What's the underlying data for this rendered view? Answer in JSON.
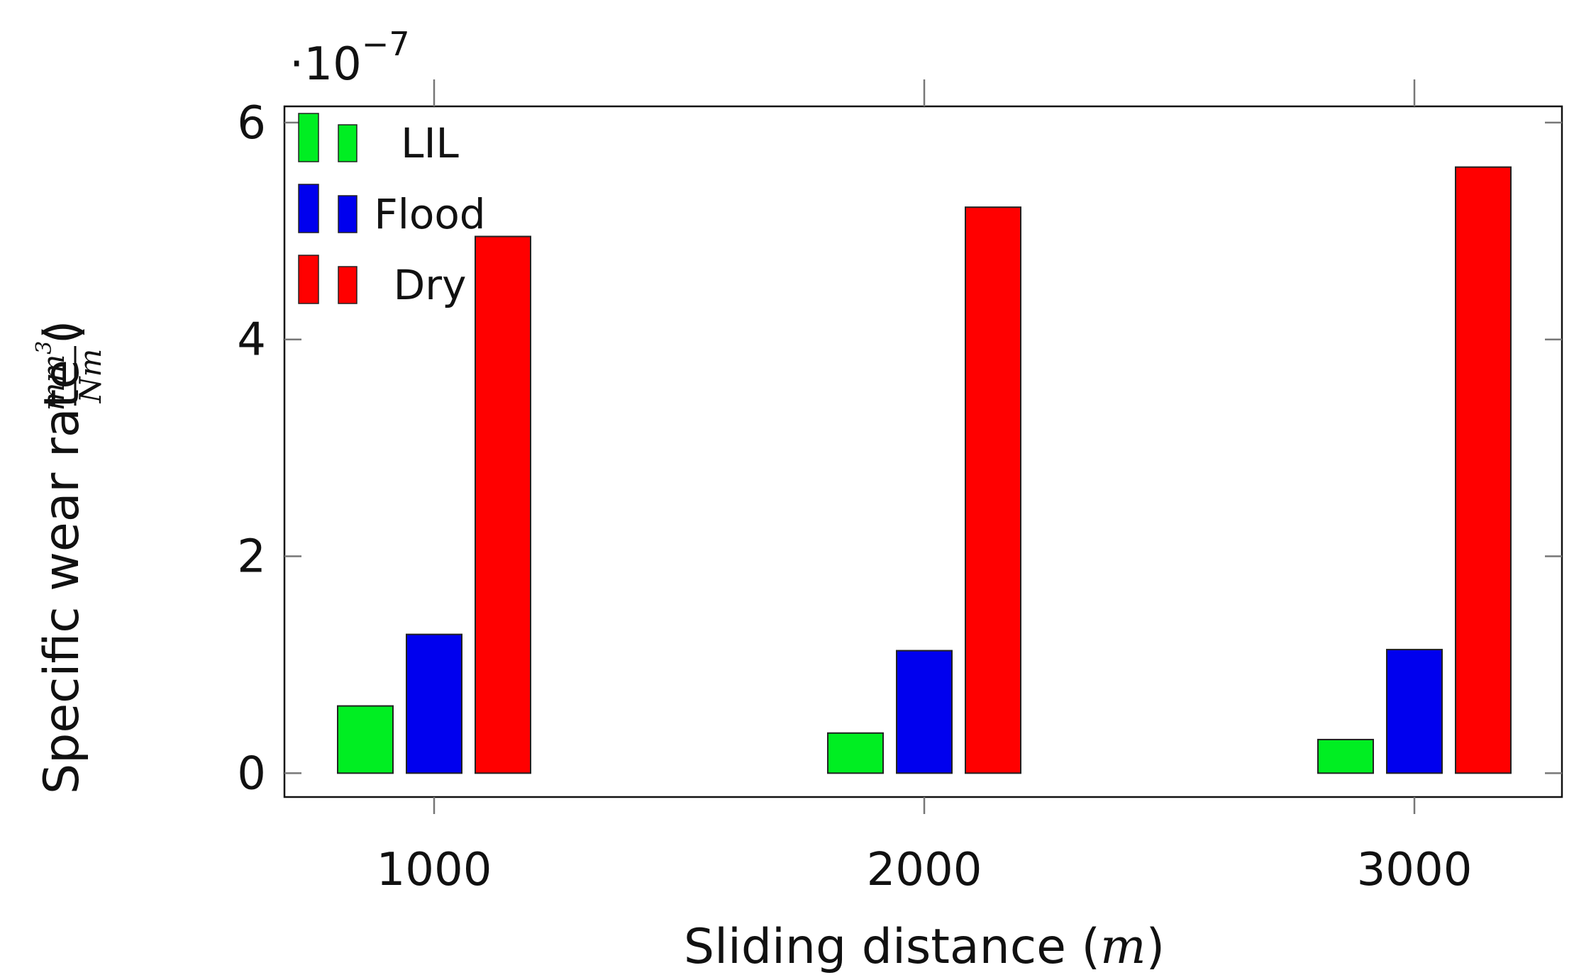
{
  "chart_data": {
    "type": "bar",
    "categories": [
      "1000",
      "2000",
      "3000"
    ],
    "series": [
      {
        "name": "LIL",
        "color": "#00ee22",
        "values": [
          0.62,
          0.37,
          0.31
        ]
      },
      {
        "name": "Flood",
        "color": "#0000ee",
        "values": [
          1.28,
          1.13,
          1.14
        ]
      },
      {
        "name": "Dry",
        "color": "#ff0000",
        "values": [
          4.95,
          5.22,
          5.59
        ]
      }
    ],
    "ylim": [
      -0.22,
      6.15
    ],
    "yticks": [
      0,
      2,
      4,
      6
    ],
    "ytick_labels": [
      "0",
      "2",
      "4",
      "6"
    ],
    "scale_label": "·10",
    "scale_exponent": "−7",
    "xlabel": {
      "prefix": "Sliding distance (",
      "var": "m",
      "suffix": ")"
    },
    "ylabel": {
      "prefix": "Specific wear rate (",
      "num": "mm",
      "num_exp": "3",
      "den": "Nm",
      "suffix": ")"
    },
    "legend_position": "top-left",
    "grid": false
  }
}
